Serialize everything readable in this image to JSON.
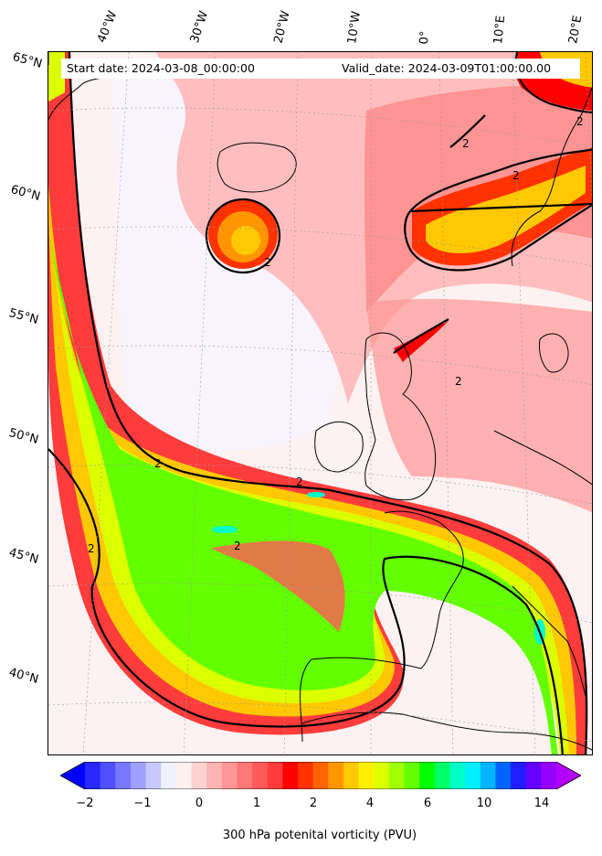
{
  "header": {
    "start_date": "Start date: 2024-03-08_00:00:00",
    "valid_date": "Valid_date: 2024-03-09T01:00:00.00"
  },
  "map": {
    "longitude_labels": [
      "40°W",
      "30°W",
      "20°W",
      "10°W",
      "0°",
      "10°E",
      "20°E"
    ],
    "latitude_labels": [
      "65°N",
      "60°N",
      "55°N",
      "50°N",
      "45°N",
      "40°N"
    ],
    "contour_labels": [
      "2",
      "2",
      "2",
      "2",
      "2",
      "2",
      "2",
      "2",
      "2"
    ],
    "contour_level": 2
  },
  "colorbar": {
    "label": "300 hPa potenital vorticity (PVU)",
    "tick_labels": [
      "−2",
      "−1",
      "0",
      "1",
      "2",
      "4",
      "6",
      "10",
      "14"
    ],
    "colors": [
      "#0000ff",
      "#2828ff",
      "#5050ff",
      "#7878ff",
      "#a0a0ff",
      "#c8c8ff",
      "#f0f0ff",
      "#fff0f0",
      "#ffd2d2",
      "#ffb4b4",
      "#ff9696",
      "#ff7878",
      "#ff5a5a",
      "#ff3c3c",
      "#ff0000",
      "#ff3200",
      "#ff6400",
      "#ff9600",
      "#ffc800",
      "#fff000",
      "#dcff00",
      "#a0ff00",
      "#64ff00",
      "#00ff00",
      "#00ff64",
      "#00ffc8",
      "#00f0ff",
      "#00b4ff",
      "#0064ff",
      "#1e1eff",
      "#6400ff",
      "#9600ff",
      "#b400ff"
    ]
  }
}
